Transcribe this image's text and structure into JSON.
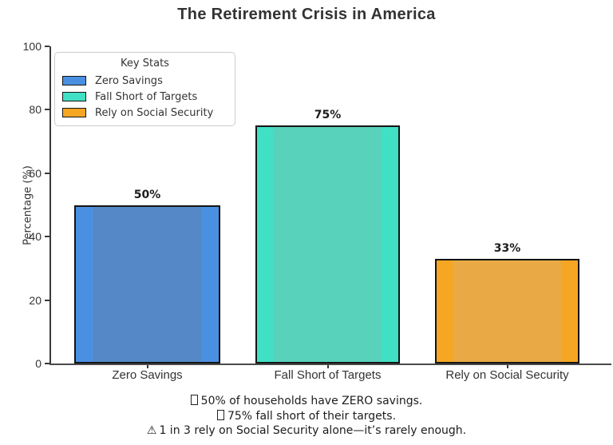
{
  "chart_data": {
    "type": "bar",
    "title": "The Retirement Crisis in America",
    "ylabel": "Percentage (%)",
    "xlabel": "",
    "ylim": [
      0,
      100
    ],
    "yticks": [
      0,
      20,
      40,
      60,
      80,
      100
    ],
    "grid": false,
    "categories": [
      "Zero Savings",
      "Fall Short of Targets",
      "Rely on Social Security"
    ],
    "values": [
      50,
      75,
      33
    ],
    "value_labels": [
      "50%",
      "75%",
      "33%"
    ],
    "bar_colors": [
      {
        "edge": "#4a90e2",
        "center": "#5488c6"
      },
      {
        "edge": "#40e0c4",
        "center": "#58d2ba"
      },
      {
        "edge": "#f5a623",
        "center": "#e9aa45"
      }
    ],
    "legend": {
      "title": "Key Stats",
      "position": "upper-left",
      "entries": [
        "Zero Savings",
        "Fall Short of Targets",
        "Rely on Social Security"
      ],
      "swatch_colors": [
        "#4a90e2",
        "#40e0c4",
        "#f5a623"
      ]
    },
    "footnotes": [
      {
        "icon": "missing-glyph",
        "glyph": "",
        "text": "50% of households have ZERO savings."
      },
      {
        "icon": "missing-glyph",
        "glyph": "",
        "text": "75% fall short of their targets."
      },
      {
        "icon": "warning",
        "glyph": "⚠",
        "text": "1 in 3 rely on Social Security alone—it’s rarely enough."
      }
    ]
  }
}
